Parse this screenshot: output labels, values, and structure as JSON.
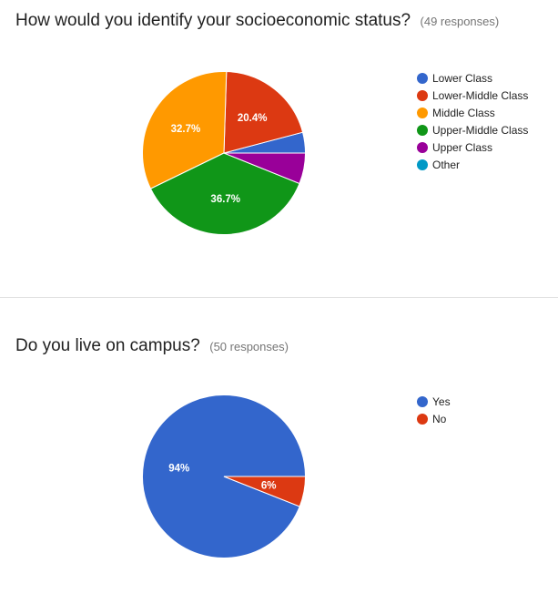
{
  "charts": [
    {
      "title": "How would you identify your socioeconomic status?",
      "responses": "(49 responses)",
      "chart_data": {
        "type": "pie",
        "categories": [
          "Lower Class",
          "Lower-Middle Class",
          "Middle Class",
          "Upper-Middle Class",
          "Upper Class",
          "Other"
        ],
        "values": [
          4.1,
          20.4,
          32.7,
          36.7,
          6.1,
          0
        ],
        "colors": [
          "#3366cc",
          "#dc3912",
          "#ff9900",
          "#109618",
          "#990099",
          "#0099c6"
        ],
        "slice_labels": [
          "",
          "20.4%",
          "32.7%",
          "36.7%",
          "",
          ""
        ],
        "legend_position": "right"
      }
    },
    {
      "title": "Do you live on campus?",
      "responses": "(50 responses)",
      "chart_data": {
        "type": "pie",
        "categories": [
          "Yes",
          "No"
        ],
        "values": [
          94,
          6
        ],
        "colors": [
          "#3366cc",
          "#dc3912"
        ],
        "slice_labels": [
          "94%",
          "6%"
        ],
        "legend_position": "right"
      }
    }
  ]
}
